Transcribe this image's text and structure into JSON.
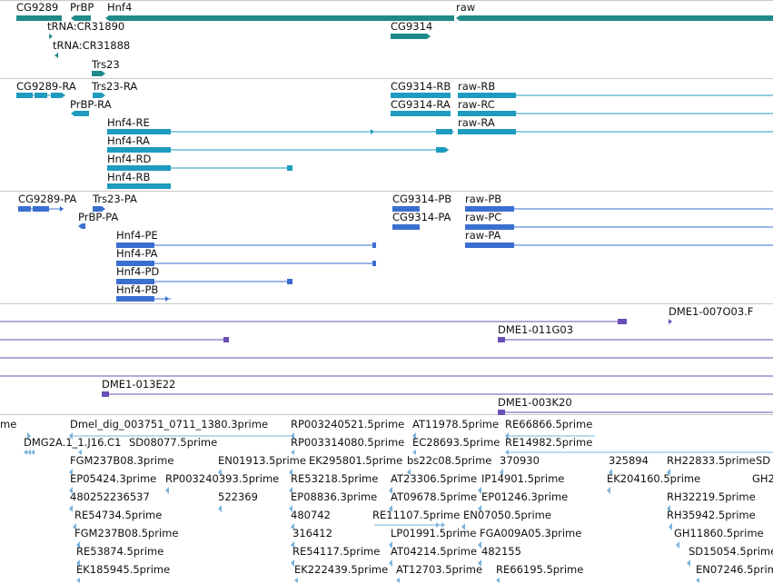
{
  "colors": {
    "gene": "#1f8a8a",
    "transcript": "#1f9bbf",
    "cds": "#3a6fcf",
    "clone": "#6b4fb8",
    "est": "#7ab3dc",
    "separator": "#c8c8c8"
  },
  "genes": [
    {
      "id": "g-cg9289",
      "label": "CG9289"
    },
    {
      "id": "g-prbp",
      "label": "PrBP"
    },
    {
      "id": "g-hnf4",
      "label": "Hnf4"
    },
    {
      "id": "g-raw",
      "label": "raw"
    },
    {
      "id": "g-trna-cr31890",
      "label": "tRNA:CR31890"
    },
    {
      "id": "g-trna-cr31888",
      "label": "tRNA:CR31888"
    },
    {
      "id": "g-cg9314",
      "label": "CG9314"
    },
    {
      "id": "g-trs23",
      "label": "Trs23"
    }
  ],
  "transcripts": [
    {
      "id": "t-cg9289-ra",
      "label": "CG9289-RA"
    },
    {
      "id": "t-trs23-ra",
      "label": "Trs23-RA"
    },
    {
      "id": "t-prbp-ra",
      "label": "PrBP-RA"
    },
    {
      "id": "t-cg9314-rb",
      "label": "CG9314-RB"
    },
    {
      "id": "t-raw-rb",
      "label": "raw-RB"
    },
    {
      "id": "t-cg9314-ra",
      "label": "CG9314-RA"
    },
    {
      "id": "t-raw-rc",
      "label": "raw-RC"
    },
    {
      "id": "t-raw-ra",
      "label": "raw-RA"
    },
    {
      "id": "t-hnf4-re",
      "label": "Hnf4-RE"
    },
    {
      "id": "t-hnf4-ra",
      "label": "Hnf4-RA"
    },
    {
      "id": "t-hnf4-rd",
      "label": "Hnf4-RD"
    },
    {
      "id": "t-hnf4-rb",
      "label": "Hnf4-RB"
    }
  ],
  "proteins": [
    {
      "id": "p-cg9289-pa",
      "label": "CG9289-PA"
    },
    {
      "id": "p-trs23-pa",
      "label": "Trs23-PA"
    },
    {
      "id": "p-prbp-pa",
      "label": "PrBP-PA"
    },
    {
      "id": "p-cg9314-pb",
      "label": "CG9314-PB"
    },
    {
      "id": "p-raw-pb",
      "label": "raw-PB"
    },
    {
      "id": "p-cg9314-pa",
      "label": "CG9314-PA"
    },
    {
      "id": "p-raw-pc",
      "label": "raw-PC"
    },
    {
      "id": "p-raw-pa",
      "label": "raw-PA"
    },
    {
      "id": "p-hnf4-pe",
      "label": "Hnf4-PE"
    },
    {
      "id": "p-hnf4-pa",
      "label": "Hnf4-PA"
    },
    {
      "id": "p-hnf4-pd",
      "label": "Hnf4-PD"
    },
    {
      "id": "p-hnf4-pb",
      "label": "Hnf4-PB"
    }
  ],
  "clones": [
    {
      "id": "c-007o03",
      "label": "DME1-007O03.F"
    },
    {
      "id": "c-011g03",
      "label": "DME1-011G03"
    },
    {
      "id": "c-013e22",
      "label": "DME1-013E22"
    },
    {
      "id": "c-003k20",
      "label": "DME1-003K20"
    }
  ],
  "ests": [
    {
      "id": "e1",
      "label": "me"
    },
    {
      "id": "e2",
      "label": "Dmel_dig_003751_0711_1380.3prime"
    },
    {
      "id": "e3",
      "label": "RP003240521.5prime"
    },
    {
      "id": "e4",
      "label": "AT11978.5prime"
    },
    {
      "id": "e5",
      "label": "RE66866.5prime"
    },
    {
      "id": "e6",
      "label": "DMG2A.1_1.J16.C1"
    },
    {
      "id": "e7",
      "label": "SD08077.5prime"
    },
    {
      "id": "e8",
      "label": "RP003314080.5prime"
    },
    {
      "id": "e9",
      "label": "EC28693.5prime"
    },
    {
      "id": "e10",
      "label": "RE14982.5prime"
    },
    {
      "id": "e11",
      "label": "FGM237B08.3prime"
    },
    {
      "id": "e12",
      "label": "EN01913.5prime"
    },
    {
      "id": "e13",
      "label": "EK295801.5prime"
    },
    {
      "id": "e14",
      "label": "bs22c08.5prime"
    },
    {
      "id": "e15",
      "label": "370930"
    },
    {
      "id": "e16",
      "label": "325894"
    },
    {
      "id": "e17",
      "label": "RH22833.5prime"
    },
    {
      "id": "e18",
      "label": "SD"
    },
    {
      "id": "e19",
      "label": "EP05424.3prime"
    },
    {
      "id": "e20",
      "label": "RP003240393.5prime"
    },
    {
      "id": "e21",
      "label": "RE53218.5prime"
    },
    {
      "id": "e22",
      "label": "AT23306.5prime"
    },
    {
      "id": "e23",
      "label": "IP14901.5prime"
    },
    {
      "id": "e24",
      "label": "EK204160.5prime"
    },
    {
      "id": "e25",
      "label": "GH2"
    },
    {
      "id": "e26",
      "label": "480252236537"
    },
    {
      "id": "e27",
      "label": "522369"
    },
    {
      "id": "e28",
      "label": "EP08836.3prime"
    },
    {
      "id": "e29",
      "label": "AT09678.5prime"
    },
    {
      "id": "e30",
      "label": "EP01246.3prime"
    },
    {
      "id": "e31",
      "label": "RH32219.5prime"
    },
    {
      "id": "e32",
      "label": "RE54734.5prime"
    },
    {
      "id": "e33",
      "label": "480742"
    },
    {
      "id": "e34",
      "label": "RE11107.5prime"
    },
    {
      "id": "e35",
      "label": "EN07050.5prime"
    },
    {
      "id": "e36",
      "label": "RH35942.5prime"
    },
    {
      "id": "e37",
      "label": "FGM237B08.5prime"
    },
    {
      "id": "e38",
      "label": "316412"
    },
    {
      "id": "e39",
      "label": "LP01991.5prime"
    },
    {
      "id": "e40",
      "label": "FGA009A05.3prime"
    },
    {
      "id": "e41",
      "label": "GH11860.5prime"
    },
    {
      "id": "e42",
      "label": "RE53874.5prime"
    },
    {
      "id": "e43",
      "label": "RE54117.5prime"
    },
    {
      "id": "e44",
      "label": "AT04214.5prime"
    },
    {
      "id": "e45",
      "label": "482155"
    },
    {
      "id": "e46",
      "label": "SD15054.5prime"
    },
    {
      "id": "e47",
      "label": "EK185945.5prime"
    },
    {
      "id": "e48",
      "label": "EK222439.5prime"
    },
    {
      "id": "e49",
      "label": "AT12703.5prime"
    },
    {
      "id": "e50",
      "label": "RE66195.5prime"
    },
    {
      "id": "e51",
      "label": "EN07246.5prime"
    }
  ]
}
